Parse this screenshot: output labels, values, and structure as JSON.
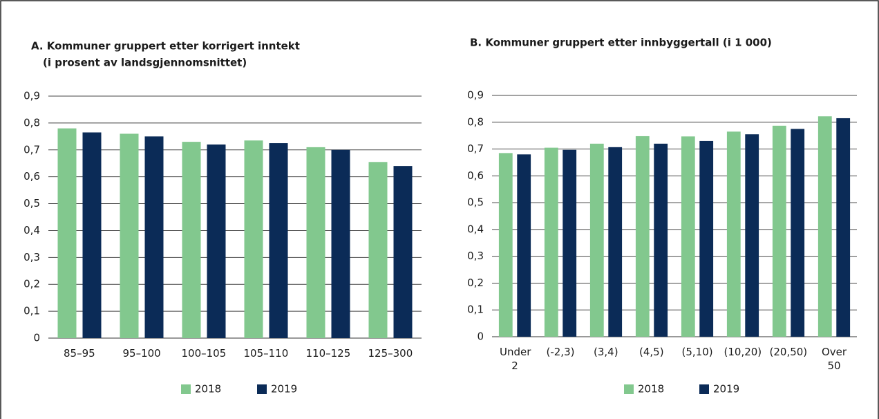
{
  "chart_data": [
    {
      "type": "bar",
      "title": "A. Kommuner gruppert etter korrigert inntekt",
      "subtitle": "(i prosent av landsgjennomsnittet)",
      "categories": [
        "85–95",
        "95–100",
        "100–105",
        "105–110",
        "110–125",
        "125–300"
      ],
      "series": [
        {
          "name": "2018",
          "color": "#82c88e",
          "values": [
            0.78,
            0.76,
            0.73,
            0.735,
            0.71,
            0.655
          ]
        },
        {
          "name": "2019",
          "color": "#0b2b57",
          "values": [
            0.765,
            0.75,
            0.72,
            0.725,
            0.7,
            0.64
          ]
        }
      ],
      "ylim": [
        0,
        0.9
      ],
      "yticks": [
        0,
        {
          "value": 0.1,
          "label": "0,1"
        },
        {
          "value": 0.2,
          "label": "0,2"
        },
        {
          "value": 0.3,
          "label": "0,3"
        },
        {
          "value": 0.4,
          "label": "0,4"
        },
        {
          "value": 0.5,
          "label": "0,5"
        },
        {
          "value": 0.6,
          "label": "0,6"
        },
        {
          "value": 0.7,
          "label": "0,7"
        },
        {
          "value": 0.8,
          "label": "0,8"
        },
        {
          "value": 0.9,
          "label": "0,9"
        }
      ],
      "grid": true,
      "legend": "bottom"
    },
    {
      "type": "bar",
      "title": "B. Kommuner gruppert etter innbyggertall (i 1 000)",
      "categories": [
        "Under 2",
        "(-2,3)",
        "(3,4)",
        "(4,5)",
        "(5,10)",
        "(10,20)",
        "(20,50)",
        "Over 50"
      ],
      "series": [
        {
          "name": "2018",
          "color": "#82c88e",
          "values": [
            0.685,
            0.705,
            0.72,
            0.748,
            0.747,
            0.765,
            0.787,
            0.822
          ]
        },
        {
          "name": "2019",
          "color": "#0b2b57",
          "values": [
            0.68,
            0.697,
            0.707,
            0.72,
            0.73,
            0.755,
            0.775,
            0.815
          ]
        }
      ],
      "ylim": [
        0,
        0.9
      ],
      "yticks": [
        0,
        {
          "value": 0.1,
          "label": "0,1"
        },
        {
          "value": 0.2,
          "label": "0,2"
        },
        {
          "value": 0.3,
          "label": "0,3"
        },
        {
          "value": 0.4,
          "label": "0,4"
        },
        {
          "value": 0.5,
          "label": "0,5"
        },
        {
          "value": 0.6,
          "label": "0,6"
        },
        {
          "value": 0.7,
          "label": "0,7"
        },
        {
          "value": 0.8,
          "label": "0,8"
        },
        {
          "value": 0.9,
          "label": "0,9"
        }
      ],
      "grid": true,
      "legend": "bottom"
    }
  ]
}
